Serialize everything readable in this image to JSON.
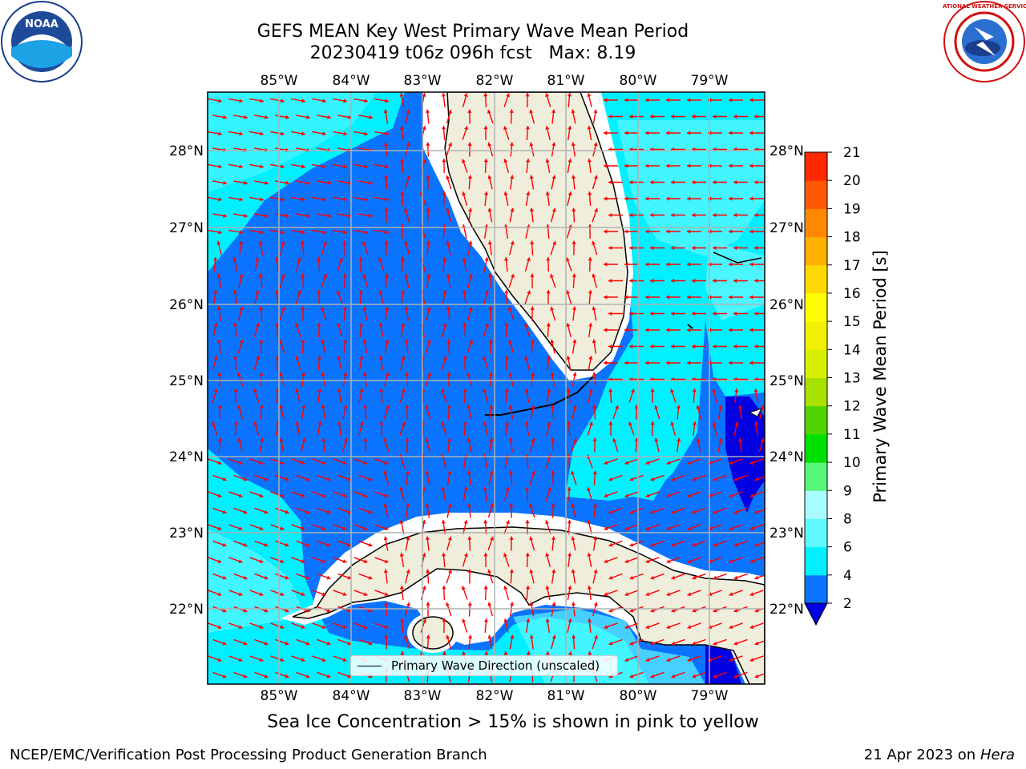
{
  "header": {
    "title_line1": "GEFS MEAN Key West Primary Wave Mean Period",
    "title_line2": "20230419 t06z 096h fcst   Max: 8.19"
  },
  "logos": {
    "noaa": "NOAA",
    "nws": "NATIONAL WEATHER SERVICE"
  },
  "map": {
    "lon_labels": [
      "85°W",
      "84°W",
      "83°W",
      "82°W",
      "81°W",
      "80°W",
      "79°W"
    ],
    "lat_labels": [
      "28°N",
      "27°N",
      "26°N",
      "25°N",
      "24°N",
      "23°N",
      "22°N"
    ],
    "legend_label": "Primary Wave Direction (unscaled)",
    "colors": {
      "land": "#efeedc",
      "ocean_deep": "#0a74ff",
      "ocean_cyan": "#00f0ff",
      "ocean_light": "#5ef8ff",
      "ocean_darkblue": "#0000e0",
      "arrow": "#ff0000",
      "grid": "#b0b0b0"
    }
  },
  "colorbar": {
    "label": "Primary Wave Mean Period [s]",
    "ticks": [
      "2",
      "4",
      "6",
      "8",
      "9",
      "10",
      "11",
      "12",
      "13",
      "14",
      "15",
      "16",
      "17",
      "18",
      "19",
      "20",
      "21"
    ],
    "colors": [
      "#0a74ff",
      "#00f0ff",
      "#5ef8ff",
      "#a8fbff",
      "#59f77a",
      "#00e000",
      "#50d400",
      "#a8e000",
      "#d8f000",
      "#f0f000",
      "#ffff00",
      "#ffd800",
      "#ffb000",
      "#ff8800",
      "#ff5800",
      "#ff2800",
      "#ff0000"
    ],
    "extend_color": "#0000e0"
  },
  "footer": {
    "ice_note": "Sea Ice Concentration > 15% is shown in pink to yellow",
    "left": "NCEP/EMC/Verification Post Processing Product Generation Branch",
    "right_prefix": "21 Apr 2023 on ",
    "right_host": "Hera"
  }
}
